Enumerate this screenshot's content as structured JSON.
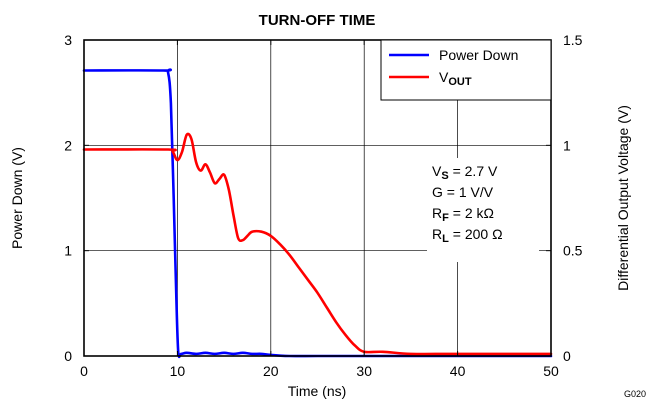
{
  "chart_data": {
    "type": "line",
    "title": "TURN-OFF TIME",
    "xlabel": "Time (ns)",
    "ylabel_left": "Power Down (V)",
    "ylabel_right": "Differential Output Voltage (V)",
    "xlim": [
      0,
      50
    ],
    "ylim_left": [
      0,
      3
    ],
    "ylim_right": [
      0,
      1.5
    ],
    "x_ticks": [
      "0",
      "10",
      "20",
      "30",
      "40",
      "50"
    ],
    "y_left_ticks": [
      "0",
      "1",
      "2",
      "3"
    ],
    "y_right_ticks": [
      "0",
      "0.5",
      "1",
      "1.5"
    ],
    "grid": true,
    "legend_position": "top-right",
    "series": [
      {
        "name": "Power Down",
        "axis": "left",
        "color": "#0000ff",
        "x": [
          0,
          8.5,
          9.0,
          9.3,
          9.6,
          9.9,
          10.1,
          10.4,
          11,
          12,
          13,
          14,
          15,
          16,
          17,
          18,
          19,
          20,
          22,
          25,
          30,
          40,
          50
        ],
        "y": [
          2.71,
          2.71,
          2.69,
          2.4,
          1.5,
          0.5,
          0.03,
          0.02,
          0.03,
          0.02,
          0.03,
          0.02,
          0.03,
          0.02,
          0.03,
          0.02,
          0.02,
          0.01,
          0.0,
          0.0,
          0.0,
          0.0,
          0.0
        ]
      },
      {
        "name": "V_OUT",
        "axis": "right",
        "color": "#ff0000",
        "x": [
          0,
          9.0,
          9.5,
          10.0,
          10.5,
          11.0,
          11.5,
          12.0,
          12.5,
          13.0,
          13.5,
          14.0,
          14.5,
          15.0,
          15.5,
          16.0,
          16.5,
          17.0,
          17.5,
          18.0,
          19.0,
          20.0,
          21.0,
          22.0,
          23.0,
          24.0,
          25.0,
          26.0,
          27.0,
          28.0,
          29.0,
          30.0,
          32.0,
          35.0,
          40.0,
          50.0
        ],
        "y": [
          0.98,
          0.98,
          0.97,
          0.93,
          0.97,
          1.05,
          1.03,
          0.92,
          0.88,
          0.91,
          0.87,
          0.82,
          0.84,
          0.86,
          0.79,
          0.67,
          0.56,
          0.55,
          0.57,
          0.59,
          0.59,
          0.57,
          0.53,
          0.48,
          0.42,
          0.36,
          0.3,
          0.23,
          0.16,
          0.1,
          0.05,
          0.02,
          0.02,
          0.01,
          0.01,
          0.01
        ]
      }
    ],
    "legend": [
      {
        "label": "Power Down",
        "sub": "",
        "color": "#0000ff"
      },
      {
        "label": "V",
        "sub": "OUT",
        "color": "#ff0000"
      }
    ],
    "annotations": [
      {
        "main": "V",
        "sub": "S",
        "rest": " = 2.7 V"
      },
      {
        "main": "G = 1 V/V",
        "sub": "",
        "rest": ""
      },
      {
        "main": "R",
        "sub": "F",
        "rest": " = 2 kΩ"
      },
      {
        "main": "R",
        "sub": "L",
        "rest": " = 200 Ω"
      }
    ],
    "figure_id": "G020"
  }
}
